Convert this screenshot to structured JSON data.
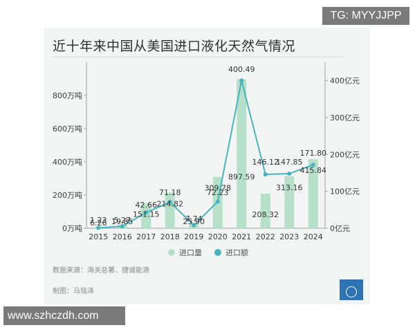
{
  "watermarks": {
    "top": "TG: MYYJJPP",
    "bottom": "www.szhczdh.com"
  },
  "colors": {
    "bar": "#b7e0cb",
    "line": "#46b3bf",
    "card": "#f3f5f4"
  },
  "source": "数据来源：海关总署、捷诚能源",
  "credit": "制图：马铭泽",
  "logo_icon": "globe-icon",
  "chart_data": {
    "type": "bar",
    "title": "近十年来中国从美国进口液化天然气情况",
    "categories": [
      "2015",
      "2016",
      "2017",
      "2018",
      "2019",
      "2020",
      "2021",
      "2022",
      "2023",
      "2024"
    ],
    "series": [
      {
        "name": "进口量",
        "type": "bar",
        "axis": "left",
        "unit": "万吨",
        "values": [
          6.26,
          19.85,
          151.15,
          214.82,
          25.9,
          309.78,
          897.59,
          208.32,
          313.16,
          415.84
        ],
        "labels": [
          "6.26",
          "19.85",
          "151.15",
          "214.82",
          "25.90",
          "309.78",
          "897.59",
          "208.32",
          "313.16",
          "415.84"
        ]
      },
      {
        "name": "进口额",
        "type": "line",
        "axis": "right",
        "unit": "亿元",
        "values": [
          1.23,
          5.27,
          42.66,
          71.18,
          7.74,
          72.23,
          400.49,
          146.12,
          147.85,
          171.8
        ],
        "labels": [
          "1.23",
          "5.27",
          "42.66",
          "71.18",
          "7.74",
          "72.23",
          "400.49",
          "146.12",
          "147.85",
          "171.80"
        ]
      }
    ],
    "left_axis": {
      "range": [
        0,
        1000
      ],
      "ticks": [
        0,
        200,
        400,
        600,
        800
      ],
      "tick_labels": [
        "0万吨",
        "200万吨",
        "400万吨",
        "600万吨",
        "800万吨"
      ]
    },
    "right_axis": {
      "range": [
        0,
        450
      ],
      "ticks": [
        0,
        100,
        200,
        300,
        400
      ],
      "tick_labels": [
        "0亿元",
        "100亿元",
        "200亿元",
        "300亿元",
        "400亿元"
      ]
    },
    "legend": {
      "placement": "bottom",
      "entries": [
        "进口量",
        "进口额"
      ]
    }
  }
}
